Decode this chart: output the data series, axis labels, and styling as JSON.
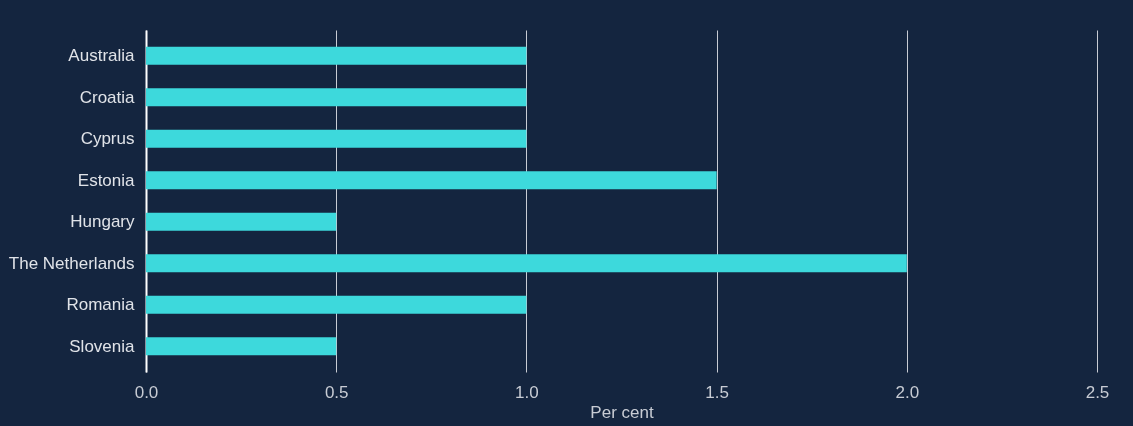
{
  "chart_data": {
    "type": "bar",
    "orientation": "horizontal",
    "xlabel": "Per cent",
    "categories": [
      "Australia",
      "Croatia",
      "Cyprus",
      "Estonia",
      "Hungary",
      "The Netherlands",
      "Romania",
      "Slovenia"
    ],
    "values": [
      1.0,
      1.0,
      1.0,
      1.5,
      0.5,
      2.0,
      1.0,
      0.5
    ],
    "color": "#3dd9dc",
    "xlim": [
      0,
      2.5
    ],
    "xticks": [
      {
        "value": 0,
        "label": "0.0"
      },
      {
        "value": 0.5,
        "label": "0.5"
      },
      {
        "value": 1,
        "label": "1.0"
      },
      {
        "value": 1.5,
        "label": "1.5"
      },
      {
        "value": 2,
        "label": "2.0"
      },
      {
        "value": 2.5,
        "label": "2.5"
      }
    ],
    "grid": "x"
  }
}
